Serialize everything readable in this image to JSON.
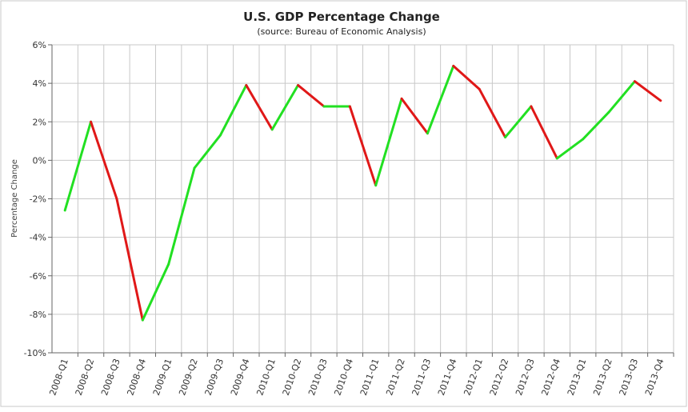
{
  "chart_data": {
    "type": "line",
    "title": "U.S. GDP Percentage Change",
    "subtitle": "(source: Bureau of Economic Analysis)",
    "xlabel": "",
    "ylabel": "Percentage Change",
    "ylim": [
      -10,
      6
    ],
    "yticks": [
      -10,
      -8,
      -6,
      -4,
      -2,
      0,
      2,
      4,
      6
    ],
    "ytick_labels": [
      "-10%",
      "-8%",
      "-6%",
      "-4%",
      "-2%",
      "0%",
      "2%",
      "4%",
      "6%"
    ],
    "grid": true,
    "legend": "none",
    "categories": [
      "2008-Q1",
      "2008-Q2",
      "2008-Q3",
      "2008-Q4",
      "2009-Q1",
      "2009-Q2",
      "2009-Q3",
      "2009-Q4",
      "2010-Q1",
      "2010-Q2",
      "2010-Q3",
      "2010-Q4",
      "2011-Q1",
      "2011-Q2",
      "2011-Q3",
      "2011-Q4",
      "2012-Q1",
      "2012-Q2",
      "2012-Q3",
      "2012-Q4",
      "2013-Q1",
      "2013-Q2",
      "2013-Q3",
      "2013-Q4"
    ],
    "values": [
      -2.6,
      2.0,
      -2.0,
      -8.3,
      -5.4,
      -0.4,
      1.3,
      3.9,
      1.6,
      3.9,
      2.8,
      2.8,
      -1.3,
      3.2,
      1.4,
      4.9,
      3.7,
      1.2,
      2.8,
      0.1,
      1.1,
      2.5,
      4.1,
      3.1
    ],
    "colors": {
      "increase": "#22e022",
      "decrease": "#e01818"
    }
  }
}
